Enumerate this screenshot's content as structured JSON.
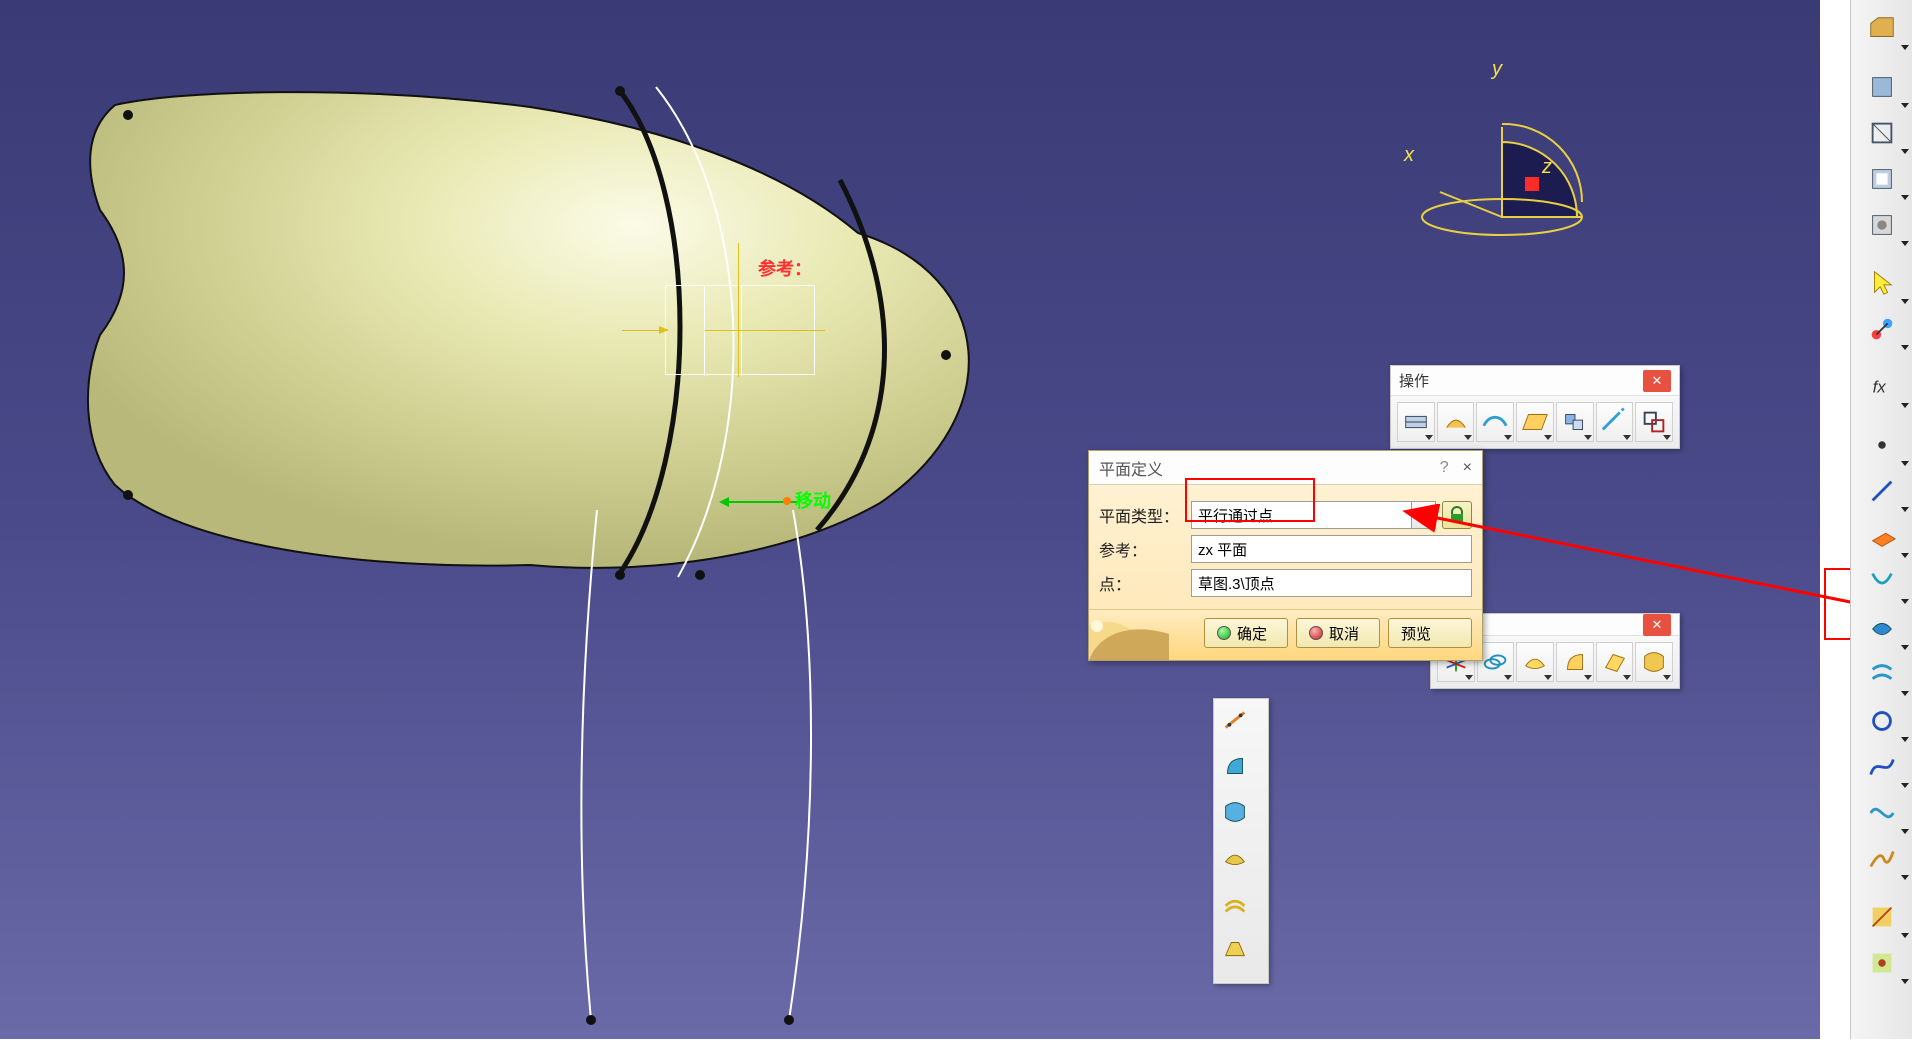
{
  "viewport": {
    "bg_top": "#3a3a75",
    "bg_mid": "#4a4a8a",
    "bg_bot": "#6a6aa8"
  },
  "model": {
    "label_ref": "参考：",
    "label_move": "移动"
  },
  "compass": {
    "axes": {
      "x": "x",
      "y": "y",
      "z": "z"
    }
  },
  "dialog": {
    "title": "平面定义",
    "help": "?",
    "close": "×",
    "row_type_label": "平面类型：",
    "type_value": "平行通过点",
    "row_ref_label": "参考：",
    "ref_value": "zx 平面",
    "row_point_label": "点：",
    "point_value": "草图.3\\顶点",
    "btn_ok": "确定",
    "btn_cancel": "取消",
    "btn_preview": "预览"
  },
  "palette_ops": {
    "title": "操作",
    "tools": [
      "join-icon",
      "healing-icon",
      "curve-smooth-icon",
      "extract-icon",
      "translate-icon",
      "extrapolate-icon",
      "transform-icon"
    ]
  },
  "palette_bottom": {
    "tools": [
      "axis-system-icon",
      "offset-3d-icon",
      "fill-icon",
      "sweep-icon",
      "loft-icon",
      "blend-icon"
    ]
  },
  "vpal": {
    "tools": [
      "law-icon",
      "sweep-surf-icon",
      "blend-surf-icon",
      "fill-surf-icon",
      "offset-surf-icon",
      "multisections-icon"
    ]
  },
  "right_toolbar": {
    "groups": [
      [
        "open-file-icon"
      ],
      [
        "view-mode1-icon",
        "view-mode2-icon",
        "view-mode3-icon",
        "view-mode4-icon"
      ],
      [
        "select-arrow-icon",
        "constraint-icon"
      ],
      [
        "formula-icon"
      ],
      [
        "point-icon",
        "line-icon",
        "plane-icon",
        "project-icon",
        "intersect-icon",
        "parallel-curve-icon",
        "circle-icon",
        "spline-icon",
        "curve2-icon",
        "connect-curve-icon"
      ],
      [
        "analysis1-icon",
        "analysis2-icon"
      ]
    ]
  },
  "annotations": {
    "combo_highlight": true,
    "plane_tool_highlight": true,
    "arrow_color": "#ff0000"
  }
}
